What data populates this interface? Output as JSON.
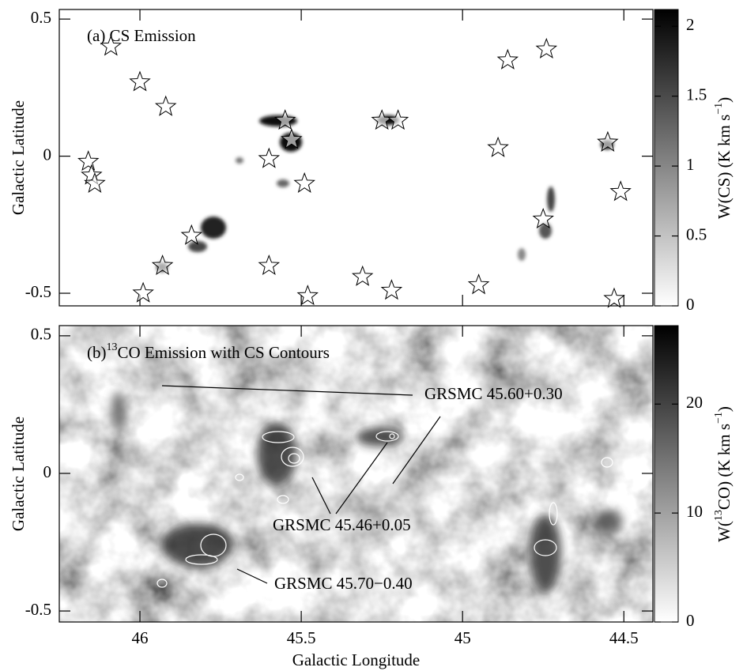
{
  "chart_data": [
    {
      "type": "map",
      "label_parts": [
        "(a) CS Emission"
      ],
      "ylabel": "Galactic Latitude",
      "xlim": [
        46.25,
        44.41
      ],
      "ylim": [
        -0.546,
        0.535
      ],
      "yticks": [
        -0.5,
        0,
        0.5
      ],
      "points": {
        "x": [
          46.09,
          46.0,
          45.92,
          46.16,
          46.15,
          46.14,
          45.84,
          45.93,
          45.99,
          45.55,
          45.53,
          45.6,
          45.49,
          45.6,
          45.48,
          45.31,
          45.22,
          45.25,
          45.2,
          44.95,
          44.89,
          44.86,
          44.74,
          44.75,
          44.55,
          44.51,
          44.53
        ],
        "y": [
          0.4,
          0.27,
          0.18,
          -0.02,
          -0.07,
          -0.1,
          -0.29,
          -0.4,
          -0.5,
          0.13,
          0.06,
          -0.01,
          -0.1,
          -0.4,
          -0.51,
          -0.44,
          -0.49,
          0.13,
          0.13,
          -0.47,
          0.03,
          0.35,
          0.39,
          -0.23,
          0.05,
          -0.13,
          -0.52
        ]
      },
      "colorbar": {
        "clim": [
          0,
          2.12
        ],
        "ticks": [
          0,
          0.5,
          1,
          1.5,
          2
        ],
        "label_parts": [
          "W(CS)  (K km s",
          "−1",
          ")"
        ]
      }
    },
    {
      "type": "map",
      "label_parts": [
        "(b)",
        "13",
        "CO Emission with CS Contours"
      ],
      "ylabel": "Galactic Latitude",
      "xlabel": "Galactic Longitude",
      "xlim": [
        46.25,
        44.41
      ],
      "ylim": [
        -0.54,
        0.537
      ],
      "xticks": [
        46,
        45.5,
        45,
        44.5
      ],
      "yticks": [
        -0.5,
        0,
        0.5
      ],
      "annotations": [
        "GRSMC 45.60+0.30",
        "GRSMC 45.46+0.05",
        "GRSMC 45.70−0.40"
      ],
      "colorbar": {
        "clim": [
          0,
          27.2
        ],
        "ticks": [
          0,
          10,
          20
        ],
        "label_parts": [
          "W(",
          "13",
          "CO)  (K km s",
          "−1",
          ")"
        ]
      }
    }
  ]
}
